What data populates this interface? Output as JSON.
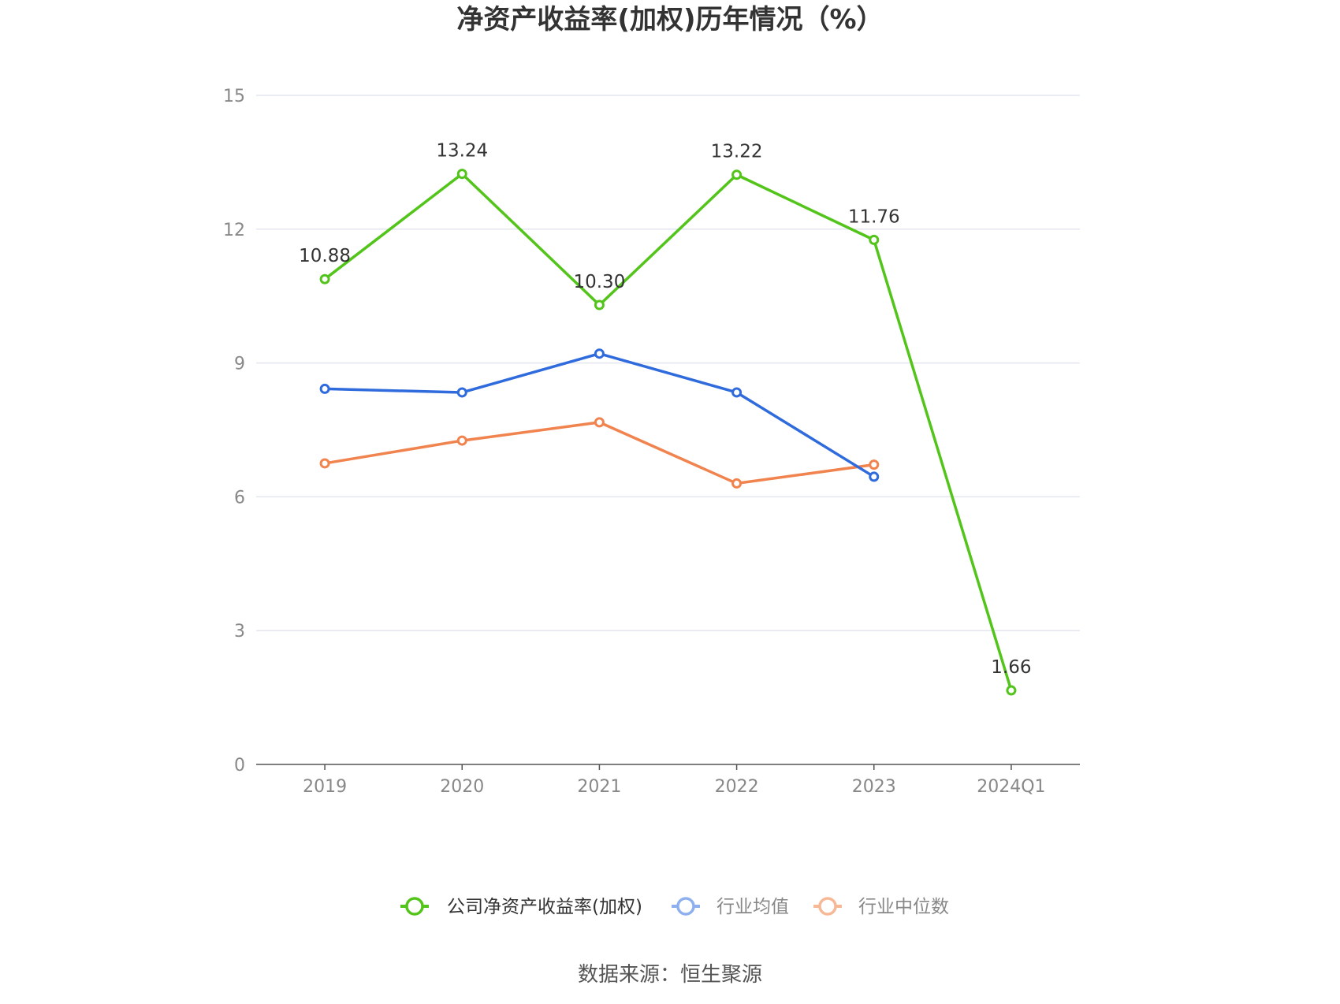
{
  "chart_data": {
    "type": "line",
    "title": "净资产收益率(加权)历年情况（%）",
    "categories": [
      "2019",
      "2020",
      "2021",
      "2022",
      "2023",
      "2024Q1"
    ],
    "ylim": [
      0,
      15
    ],
    "yticks": [
      0,
      3,
      6,
      9,
      12,
      15
    ],
    "grid": true,
    "legend_position": "bottom",
    "series": [
      {
        "name": "公司净资产收益率(加权)",
        "color": "#52c41a",
        "values": [
          10.88,
          13.24,
          10.3,
          13.22,
          11.76,
          1.66
        ],
        "labels": [
          "10.88",
          "13.24",
          "10.30",
          "13.22",
          "11.76",
          "1.66"
        ]
      },
      {
        "name": "行业均值",
        "color": "#2f6bdc",
        "legend_color": "#8fb0ee",
        "values": [
          8.42,
          8.34,
          9.21,
          8.34,
          6.45,
          null
        ]
      },
      {
        "name": "行业中位数",
        "color": "#f0834e",
        "legend_color": "#f6b895",
        "values": [
          6.75,
          7.26,
          7.67,
          6.3,
          6.72,
          null
        ]
      }
    ]
  },
  "source": "数据来源：恒生聚源"
}
